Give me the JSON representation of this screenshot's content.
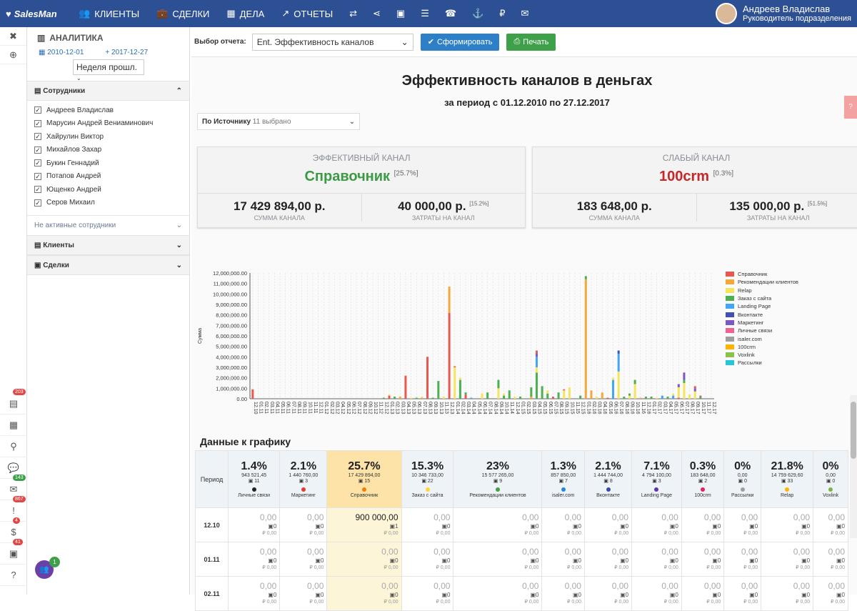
{
  "topbar": {
    "logo": "SalesMan",
    "nav": [
      "КЛИЕНТЫ",
      "СДЕЛКИ",
      "ДЕЛА",
      "ОТЧЕТЫ"
    ],
    "user_name": "Андреев Владислав",
    "user_role": "Руководитель подразделения"
  },
  "rail": {
    "badges": [
      "203",
      "143",
      "867",
      "4",
      "41"
    ]
  },
  "sidebar": {
    "title": "АНАЛИТИКА",
    "date_from": "2010-12-01",
    "date_to": "2017-12-27",
    "period": "Неделя прошл.",
    "employees_title": "Сотрудники",
    "employees": [
      "Андреев Владислав",
      "Марусин Андрей Вениаминович",
      "Хайрулин Виктор",
      "Михайлов Захар",
      "Букин Геннадий",
      "Потапов Андрей",
      "Ющенко Андрей",
      "Серов Михаил"
    ],
    "inactive": "Не активные сотрудники",
    "clients": "Клиенты",
    "deals": "Сделки"
  },
  "toolbar": {
    "label": "Выбор отчета:",
    "report": "Ent. Эффективность каналов",
    "generate": "Сформировать",
    "print": "Печать"
  },
  "report": {
    "title": "Эффективность каналов в деньгах",
    "subtitle": "за период с 01.12.2010 по 27.12.2017",
    "filter_label": "По Источнику",
    "filter_count": "11 выбрано"
  },
  "cards": {
    "effective": {
      "head": "ЭФФЕКТИВНЫЙ КАНАЛ",
      "name": "Справочник",
      "pct": "[25.7%]",
      "sum": "17 429 894,00 р.",
      "sum_label": "СУММА КАНАЛА",
      "cost": "40 000,00 р.",
      "cost_pct": "[15.2%]",
      "cost_label": "ЗАТРАТЫ НА КАНАЛ"
    },
    "weak": {
      "head": "СЛАБЫЙ КАНАЛ",
      "name": "100crm",
      "pct": "[0.3%]",
      "sum": "183 648,00 р.",
      "sum_label": "СУММА КАНАЛА",
      "cost": "135 000,00 р.",
      "cost_pct": "[51.5%]",
      "cost_label": "ЗАТРАТЫ НА КАНАЛ"
    }
  },
  "chart_data": {
    "type": "bar",
    "ylabel": "Сумма",
    "ylim": [
      0,
      12000000
    ],
    "yticks": [
      "12,000,000.00",
      "11,000,000.00",
      "10,000,000.00",
      "9,000,000.00",
      "8,000,000.00",
      "7,000,000.00",
      "6,000,000.00",
      "5,000,000.00",
      "4,000,000.00",
      "3,000,000.00",
      "2,000,000.00",
      "1,000,000.00",
      "0.00"
    ],
    "categories": [
      "12.10",
      "01.11",
      "02.11",
      "03.11",
      "04.11",
      "05.11",
      "06.11",
      "07.11",
      "08.11",
      "09.11",
      "10.11",
      "11.11",
      "12.11",
      "01.12",
      "02.12",
      "03.12",
      "04.12",
      "05.12",
      "06.12",
      "07.12",
      "08.12",
      "09.12",
      "10.12",
      "11.12",
      "12.12",
      "01.13",
      "02.13",
      "03.13",
      "04.13",
      "05.13",
      "06.13",
      "07.13",
      "08.13",
      "09.13",
      "10.13",
      "11.13",
      "12.13",
      "01.14",
      "02.14",
      "03.14",
      "04.14",
      "05.14",
      "06.14",
      "07.14",
      "08.14",
      "09.14",
      "10.14",
      "11.14",
      "12.14",
      "01.15",
      "02.15",
      "03.15",
      "04.15",
      "05.15",
      "06.15",
      "07.15",
      "08.15",
      "09.15",
      "10.15",
      "11.15",
      "12.15",
      "01.16",
      "02.16",
      "03.16",
      "04.16",
      "05.16",
      "06.16",
      "07.16",
      "08.16",
      "09.16",
      "10.16",
      "11.16",
      "12.16",
      "01.17",
      "02.17",
      "03.17",
      "04.17",
      "05.17",
      "06.17",
      "07.17",
      "08.17",
      "09.17",
      "10.17",
      "11.17",
      "12.17"
    ],
    "legend": [
      {
        "name": "Справочник",
        "color": "#e8584f"
      },
      {
        "name": "Рекомендации клиентов",
        "color": "#f5a83a"
      },
      {
        "name": "Relap",
        "color": "#f4e55c"
      },
      {
        "name": "Заказ с сайта",
        "color": "#4caf50"
      },
      {
        "name": "Landing Page",
        "color": "#42a5f5"
      },
      {
        "name": "Вконтакте",
        "color": "#3f51b5"
      },
      {
        "name": "Маркетинг",
        "color": "#7e57c2"
      },
      {
        "name": "Личные связи",
        "color": "#f06292"
      },
      {
        "name": "isaler.com",
        "color": "#9e9e9e"
      },
      {
        "name": "100crm",
        "color": "#ffb300"
      },
      {
        "name": "Voxlink",
        "color": "#8bc34a"
      },
      {
        "name": "Рассылки",
        "color": "#26c6da"
      }
    ],
    "bars": [
      {
        "i": 0,
        "stack": [
          [
            0,
            900000
          ]
        ]
      },
      {
        "i": 24,
        "stack": [
          [
            3,
            100000
          ]
        ]
      },
      {
        "i": 25,
        "stack": [
          [
            0,
            300000
          ],
          [
            2,
            100000
          ]
        ]
      },
      {
        "i": 26,
        "stack": [
          [
            3,
            200000
          ]
        ]
      },
      {
        "i": 27,
        "stack": [
          [
            1,
            200000
          ]
        ]
      },
      {
        "i": 28,
        "stack": [
          [
            0,
            2200000
          ]
        ]
      },
      {
        "i": 29,
        "stack": [
          [
            2,
            100000
          ]
        ]
      },
      {
        "i": 30,
        "stack": [
          [
            3,
            100000
          ]
        ]
      },
      {
        "i": 31,
        "stack": [
          [
            1,
            100000
          ],
          [
            2,
            100000
          ]
        ]
      },
      {
        "i": 32,
        "stack": [
          [
            0,
            4000000
          ]
        ]
      },
      {
        "i": 33,
        "stack": [
          [
            3,
            100000
          ]
        ]
      },
      {
        "i": 34,
        "stack": [
          [
            3,
            1700000
          ]
        ]
      },
      {
        "i": 35,
        "stack": [
          [
            2,
            200000
          ]
        ]
      },
      {
        "i": 36,
        "stack": [
          [
            0,
            8200000
          ],
          [
            1,
            2500000
          ]
        ]
      },
      {
        "i": 37,
        "stack": [
          [
            2,
            3000000
          ],
          [
            0,
            100000
          ]
        ]
      },
      {
        "i": 38,
        "stack": [
          [
            3,
            1800000
          ],
          [
            2,
            200000
          ]
        ]
      },
      {
        "i": 39,
        "stack": [
          [
            0,
            400000
          ],
          [
            3,
            200000
          ]
        ]
      },
      {
        "i": 40,
        "stack": [
          [
            4,
            100000
          ]
        ]
      },
      {
        "i": 42,
        "stack": [
          [
            2,
            500000
          ]
        ]
      },
      {
        "i": 43,
        "stack": [
          [
            3,
            600000
          ]
        ]
      },
      {
        "i": 45,
        "stack": [
          [
            2,
            1000000
          ],
          [
            3,
            800000
          ]
        ]
      },
      {
        "i": 46,
        "stack": [
          [
            3,
            300000
          ],
          [
            2,
            200000
          ]
        ]
      },
      {
        "i": 47,
        "stack": [
          [
            3,
            800000
          ]
        ]
      },
      {
        "i": 48,
        "stack": [
          [
            2,
            200000
          ]
        ]
      },
      {
        "i": 49,
        "stack": [
          [
            3,
            200000
          ]
        ]
      },
      {
        "i": 51,
        "stack": [
          [
            1,
            200000
          ],
          [
            3,
            900000
          ]
        ]
      },
      {
        "i": 52,
        "stack": [
          [
            3,
            2500000
          ],
          [
            2,
            500000
          ],
          [
            4,
            1000000
          ],
          [
            6,
            300000
          ],
          [
            0,
            300000
          ]
        ]
      },
      {
        "i": 53,
        "stack": [
          [
            3,
            1200000
          ]
        ]
      },
      {
        "i": 54,
        "stack": [
          [
            3,
            500000
          ],
          [
            2,
            300000
          ]
        ]
      },
      {
        "i": 55,
        "stack": [
          [
            0,
            200000
          ]
        ]
      },
      {
        "i": 56,
        "stack": [
          [
            3,
            600000
          ]
        ]
      },
      {
        "i": 57,
        "stack": [
          [
            2,
            800000
          ],
          [
            0,
            100000
          ]
        ]
      },
      {
        "i": 58,
        "stack": [
          [
            2,
            1100000
          ]
        ]
      },
      {
        "i": 60,
        "stack": [
          [
            3,
            300000
          ]
        ]
      },
      {
        "i": 61,
        "stack": [
          [
            1,
            11400000
          ],
          [
            3,
            300000
          ]
        ]
      },
      {
        "i": 62,
        "stack": [
          [
            1,
            800000
          ]
        ]
      },
      {
        "i": 63,
        "stack": [
          [
            2,
            200000
          ]
        ]
      },
      {
        "i": 64,
        "stack": [
          [
            1,
            600000
          ]
        ]
      },
      {
        "i": 65,
        "stack": [
          [
            0,
            100000
          ]
        ]
      },
      {
        "i": 66,
        "stack": [
          [
            4,
            1800000
          ],
          [
            2,
            200000
          ]
        ]
      },
      {
        "i": 67,
        "stack": [
          [
            2,
            2600000
          ],
          [
            4,
            1700000
          ],
          [
            5,
            300000
          ]
        ]
      },
      {
        "i": 68,
        "stack": [
          [
            3,
            200000
          ]
        ]
      },
      {
        "i": 69,
        "stack": [
          [
            2,
            300000
          ],
          [
            3,
            200000
          ]
        ]
      },
      {
        "i": 70,
        "stack": [
          [
            2,
            1400000
          ],
          [
            3,
            400000
          ]
        ]
      },
      {
        "i": 71,
        "stack": [
          [
            1,
            100000
          ]
        ]
      },
      {
        "i": 72,
        "stack": [
          [
            3,
            200000
          ]
        ]
      },
      {
        "i": 73,
        "stack": [
          [
            3,
            200000
          ]
        ]
      },
      {
        "i": 74,
        "stack": [
          [
            2,
            100000
          ]
        ]
      },
      {
        "i": 75,
        "stack": [
          [
            4,
            300000
          ]
        ]
      },
      {
        "i": 76,
        "stack": [
          [
            3,
            200000
          ]
        ]
      },
      {
        "i": 77,
        "stack": [
          [
            4,
            300000
          ],
          [
            2,
            200000
          ]
        ]
      },
      {
        "i": 78,
        "stack": [
          [
            0,
            100000
          ],
          [
            2,
            1000000
          ],
          [
            6,
            300000
          ]
        ]
      },
      {
        "i": 79,
        "stack": [
          [
            2,
            1500000
          ],
          [
            3,
            300000
          ],
          [
            6,
            700000
          ]
        ]
      },
      {
        "i": 80,
        "stack": [
          [
            2,
            400000
          ]
        ]
      },
      {
        "i": 81,
        "stack": [
          [
            2,
            700000
          ],
          [
            6,
            300000
          ],
          [
            0,
            200000
          ]
        ]
      },
      {
        "i": 82,
        "stack": [
          [
            3,
            200000
          ],
          [
            0,
            100000
          ]
        ]
      }
    ]
  },
  "table": {
    "title": "Данные к графику",
    "period_label": "Период",
    "channels": [
      {
        "pct": "1.4%",
        "sum": "943 521,45",
        "cnt": "11",
        "name": "Личные связи",
        "color": "#222222"
      },
      {
        "pct": "2.1%",
        "sum": "1 440 760,00",
        "cnt": "3",
        "name": "Маркетинг",
        "color": "#e53935"
      },
      {
        "pct": "25.7%",
        "sum": "17 429 894,00",
        "cnt": "15",
        "name": "Справочник",
        "color": "#f57c00"
      },
      {
        "pct": "15.3%",
        "sum": "10 346 733,00",
        "cnt": "22",
        "name": "Заказ с сайта",
        "color": "#fdd835"
      },
      {
        "pct": "23%",
        "sum": "15 577 265,00",
        "cnt": "9",
        "name": "Рекомендации клиентов",
        "color": "#43a047"
      },
      {
        "pct": "1.3%",
        "sum": "857 850,00",
        "cnt": "7",
        "name": "isaler.com",
        "color": "#1e88e5"
      },
      {
        "pct": "2.1%",
        "sum": "1 444 744,00",
        "cnt": "8",
        "name": "Вконтакте",
        "color": "#3949ab"
      },
      {
        "pct": "7.1%",
        "sum": "4 794 100,00",
        "cnt": "3",
        "name": "Landing Page",
        "color": "#5e35b1"
      },
      {
        "pct": "0.3%",
        "sum": "183 648,00",
        "cnt": "2",
        "name": "100crm",
        "color": "#e91e63"
      },
      {
        "pct": "0%",
        "sum": "0,00",
        "cnt": "0",
        "name": "Рассылки",
        "color": "#9e9e9e"
      },
      {
        "pct": "21.8%",
        "sum": "14 759 629,60",
        "cnt": "33",
        "name": "Relap",
        "color": "#ffb300"
      },
      {
        "pct": "0%",
        "sum": "0,00",
        "cnt": "0",
        "name": "Voxlink",
        "color": "#7cb342"
      }
    ],
    "rows": [
      {
        "period": "12.10",
        "values": [
          "0,00",
          "0,00",
          "900 000,00",
          "0,00",
          "0,00",
          "0,00",
          "0,00",
          "0,00",
          "0,00",
          "0,00",
          "0,00",
          "0,00"
        ],
        "counts": [
          "0",
          "0",
          "1",
          "0",
          "0",
          "0",
          "0",
          "0",
          "0",
          "0",
          "0",
          "0"
        ],
        "rub": [
          "₽ 0,00",
          "₽ 0,00",
          "₽ 0,00",
          "₽ 0,00",
          "₽ 0,00",
          "₽ 0,00",
          "₽ 0,00",
          "₽ 0,00",
          "₽ 0,00",
          "₽ 0,00",
          "₽ 0,00",
          "₽ 0,00"
        ]
      },
      {
        "period": "01.11",
        "values": [
          "0,00",
          "0,00",
          "0,00",
          "0,00",
          "0,00",
          "0,00",
          "0,00",
          "0,00",
          "0,00",
          "0,00",
          "0,00",
          "0,00"
        ],
        "counts": [
          "0",
          "0",
          "0",
          "0",
          "0",
          "0",
          "0",
          "0",
          "0",
          "0",
          "0",
          "0"
        ],
        "rub": [
          "₽ 0,00",
          "₽ 0,00",
          "₽ 0,00",
          "₽ 0,00",
          "₽ 0,00",
          "₽ 0,00",
          "₽ 0,00",
          "₽ 0,00",
          "₽ 0,00",
          "₽ 0,00",
          "₽ 0,00",
          "₽ 0,00"
        ]
      },
      {
        "period": "02.11",
        "values": [
          "0,00",
          "0,00",
          "0,00",
          "0,00",
          "0,00",
          "0,00",
          "0,00",
          "0,00",
          "0,00",
          "0,00",
          "0,00",
          "0,00"
        ],
        "counts": [
          "0",
          "0",
          "0",
          "0",
          "0",
          "0",
          "0",
          "0",
          "0",
          "0",
          "0",
          "0"
        ],
        "rub": [
          "₽ 0,00",
          "₽ 0,00",
          "₽ 0,00",
          "₽ 0,00",
          "₽ 0,00",
          "₽ 0,00",
          "₽ 0,00",
          "₽ 0,00",
          "₽ 0,00",
          "₽ 0,00",
          "₽ 0,00",
          "₽ 0,00"
        ]
      }
    ]
  },
  "float_badge": "1"
}
